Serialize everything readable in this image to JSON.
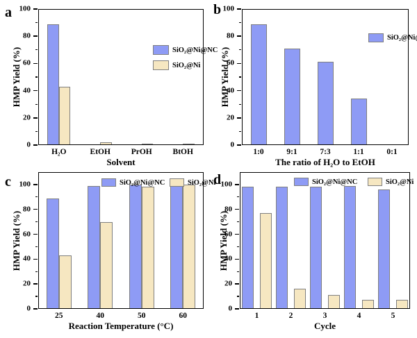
{
  "figure_title": "",
  "colors": {
    "catalyst_fill": "#8E9BF5",
    "control_fill": "#F6E7C1",
    "bar_border": "#7F7F7F",
    "axis": "#000000",
    "background": "#FFFFFF"
  },
  "chart_data": [
    {
      "panel": "a",
      "type": "bar",
      "xlabel": "Solvent",
      "ylabel": "HMP Yield (%)",
      "categories": [
        "H₂O",
        "EtOH",
        "PrOH",
        "BtOH"
      ],
      "series": [
        {
          "name": "SiO₂@Ni@NC",
          "color_key": "catalyst_fill",
          "values": [
            89,
            0,
            0,
            0
          ]
        },
        {
          "name": "SiO₂@Ni",
          "color_key": "control_fill",
          "values": [
            43,
            2,
            1,
            1
          ]
        }
      ],
      "ylim": [
        0,
        100
      ],
      "yticks": [
        0,
        20,
        40,
        60,
        80,
        100
      ],
      "yticks_minor": [
        10,
        30,
        50,
        70,
        90
      ],
      "grid": false,
      "legend_position": "upper-right-inside-vertical"
    },
    {
      "panel": "b",
      "type": "bar",
      "xlabel": "The ratio of H₂O to EtOH",
      "ylabel": "HMP Yield (%)",
      "categories": [
        "1:0",
        "9:1",
        "7:3",
        "1:1",
        "0:1"
      ],
      "series": [
        {
          "name": "SiO₂@Ni@NC",
          "color_key": "catalyst_fill",
          "values": [
            89,
            71,
            61,
            34,
            0.5
          ]
        }
      ],
      "ylim": [
        0,
        100
      ],
      "yticks": [
        0,
        20,
        40,
        60,
        80,
        100
      ],
      "yticks_minor": [
        10,
        30,
        50,
        70,
        90
      ],
      "grid": false,
      "legend_position": "upper-right-inside-horizontal"
    },
    {
      "panel": "c",
      "type": "bar",
      "xlabel": "Reaction Temperature (°C)",
      "ylabel": "HMP Yield (%)",
      "categories": [
        "25",
        "40",
        "50",
        "60"
      ],
      "series": [
        {
          "name": "SiO₂@Ni@NC",
          "color_key": "catalyst_fill",
          "values": [
            89,
            99,
            100,
            100
          ]
        },
        {
          "name": "SiO₂@Ni",
          "color_key": "control_fill",
          "values": [
            43,
            70,
            98,
            100
          ]
        }
      ],
      "ylim": [
        0,
        110
      ],
      "yticks": [
        0,
        20,
        40,
        60,
        80,
        100
      ],
      "yticks_minor": [
        10,
        30,
        50,
        70,
        90
      ],
      "grid": false,
      "legend_position": "top-center-inside-horizontal"
    },
    {
      "panel": "d",
      "type": "bar",
      "xlabel": "Cycle",
      "ylabel": "HMP Yield (%)",
      "categories": [
        "1",
        "2",
        "3",
        "4",
        "5"
      ],
      "series": [
        {
          "name": "SiO₂@Ni@NC",
          "color_key": "catalyst_fill",
          "values": [
            98,
            98,
            98,
            99,
            96
          ]
        },
        {
          "name": "SiO₂@Ni",
          "color_key": "control_fill",
          "values": [
            77,
            16,
            11,
            7,
            7
          ]
        }
      ],
      "ylim": [
        0,
        110
      ],
      "yticks": [
        0,
        20,
        40,
        60,
        80,
        100
      ],
      "yticks_minor": [
        10,
        30,
        50,
        70,
        90
      ],
      "grid": false,
      "legend_position": "top-center-inside-horizontal"
    }
  ]
}
